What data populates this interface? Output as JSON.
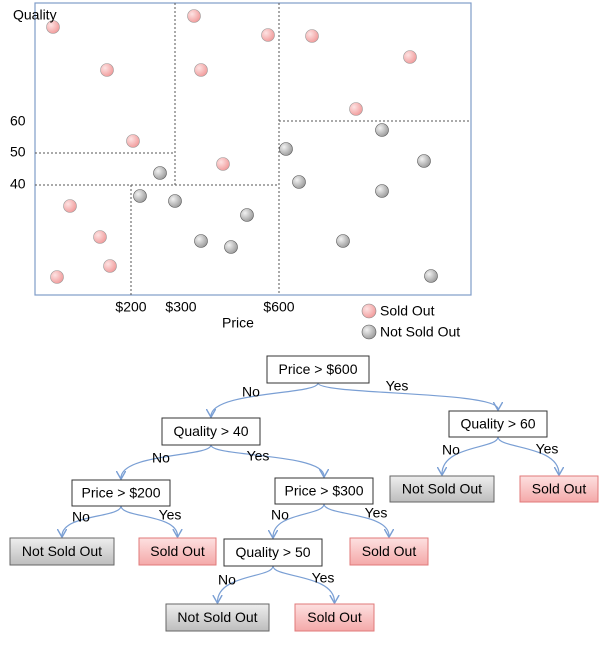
{
  "scatter": {
    "y_axis_title": "Quality",
    "y_ticks": [
      "60",
      "50",
      "40"
    ],
    "x_ticks": [
      "$200",
      "$300",
      "$600"
    ],
    "x_axis_title": "Price",
    "legend": [
      "Sold Out",
      "Not Sold Out"
    ]
  },
  "tree": {
    "nodes": [
      {
        "label": "Price > $600"
      },
      {
        "label": "Quality > 40"
      },
      {
        "label": "Quality > 60"
      },
      {
        "label": "Price > $200"
      },
      {
        "label": "Price > $300"
      },
      {
        "label": "Not Sold Out"
      },
      {
        "label": "Sold Out"
      },
      {
        "label": "Not Sold Out"
      },
      {
        "label": "Sold Out"
      },
      {
        "label": "Quality > 50"
      },
      {
        "label": "Sold Out"
      },
      {
        "label": "Not Sold Out"
      },
      {
        "label": "Sold Out"
      }
    ],
    "edges": [
      {
        "label": "No"
      },
      {
        "label": "Yes"
      },
      {
        "label": "No"
      },
      {
        "label": "Yes"
      },
      {
        "label": "No"
      },
      {
        "label": "Yes"
      },
      {
        "label": "No"
      },
      {
        "label": "Yes"
      },
      {
        "label": "No"
      },
      {
        "label": "Yes"
      },
      {
        "label": "No"
      },
      {
        "label": "Yes"
      }
    ]
  }
}
